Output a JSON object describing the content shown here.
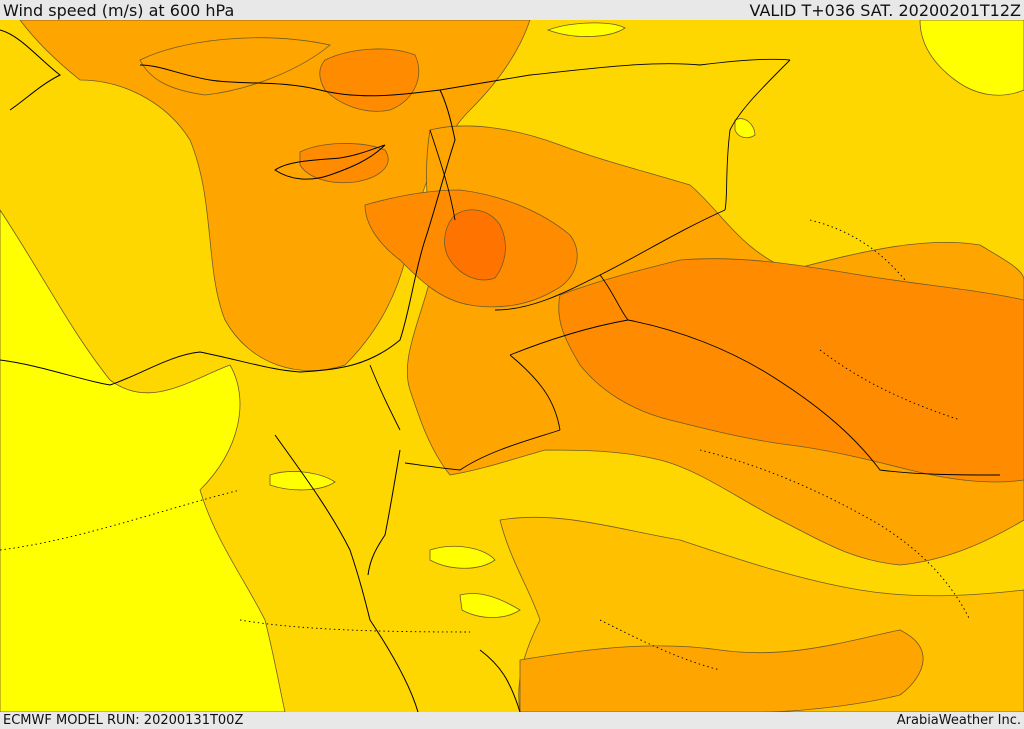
{
  "header": {
    "title": "Wind speed (m/s) at 600 hPa",
    "valid": "VALID T+036 SAT. 20200201T12Z"
  },
  "footer": {
    "model_run": "ECMWF MODEL RUN: 20200131T00Z",
    "credit": "ArabiaWeather Inc."
  },
  "map": {
    "field": "wind-speed-shading",
    "colors": {
      "lightest": "#ffff00",
      "light": "#ffd700",
      "mid": "#ffc000",
      "orange": "#ffa500",
      "dark_orange": "#ff8c00",
      "darkest": "#ff7400",
      "contour": "#6f5a2a",
      "border": "#000000"
    }
  }
}
